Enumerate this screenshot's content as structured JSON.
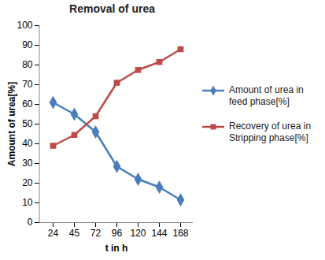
{
  "chart_data": {
    "type": "line",
    "title": "Removal of urea",
    "xlabel": "t in h",
    "ylabel": "Amount of urea[%]",
    "categories": [
      "24",
      "45",
      "72",
      "96",
      "120",
      "144",
      "168"
    ],
    "series": [
      {
        "name": "Amount of urea in feed phase[%]",
        "color": "#4a7ebb",
        "marker": "diamond",
        "values": [
          61,
          55,
          46,
          28.5,
          22,
          18,
          11.5
        ]
      },
      {
        "name": "Recovery of urea in Stripping phase[%]",
        "color": "#be4b48",
        "marker": "square",
        "values": [
          39,
          44.5,
          54,
          71,
          77.5,
          81.5,
          88
        ]
      }
    ],
    "ylim": [
      0,
      100
    ],
    "yticks": [
      0,
      10,
      20,
      30,
      40,
      50,
      60,
      70,
      80,
      90,
      100
    ],
    "grid": false,
    "legend": "right"
  }
}
